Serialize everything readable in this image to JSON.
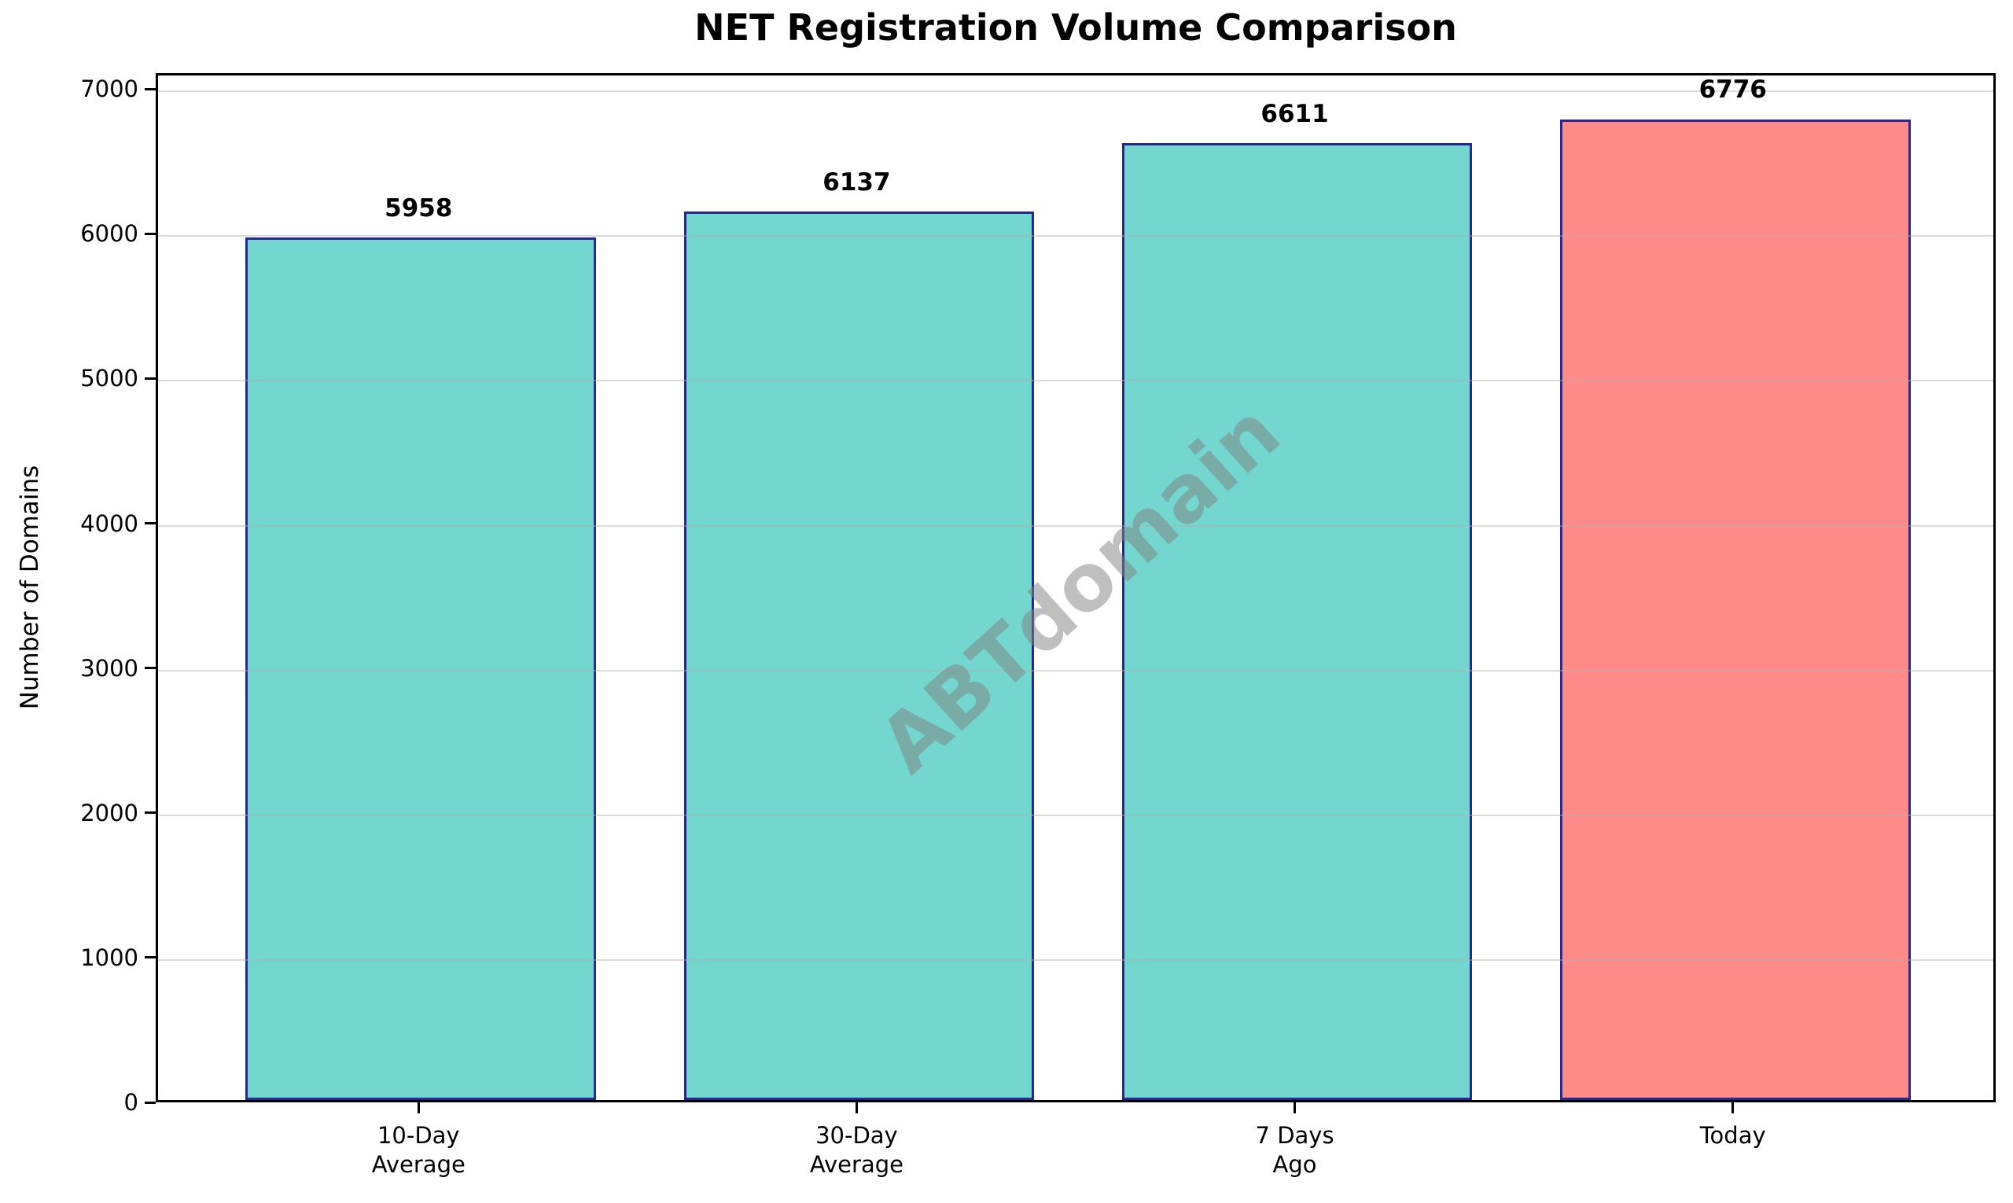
{
  "chart_data": {
    "type": "bar",
    "title": "NET Registration Volume Comparison",
    "ylabel": "Number of Domains",
    "xlabel": "",
    "categories": [
      "10-Day\nAverage",
      "30-Day\nAverage",
      "7 Days\nAgo",
      "Today"
    ],
    "values": [
      5958,
      6137,
      6611,
      6776
    ],
    "value_labels": [
      "5958",
      "6137",
      "6611",
      "6776"
    ],
    "bar_colors": [
      "#73D6CF",
      "#73D6CF",
      "#73D6CF",
      "#FF8A8A"
    ],
    "bar_edge_color": "#28288F",
    "yticks": [
      0,
      1000,
      2000,
      3000,
      4000,
      5000,
      6000,
      7000
    ],
    "ytick_labels": [
      "0",
      "1000",
      "2000",
      "3000",
      "4000",
      "5000",
      "6000",
      "7000"
    ],
    "ylim": [
      0,
      7110
    ],
    "grid": "horizontal-above-bars",
    "legend": null,
    "watermark": "ABTdomain",
    "colors": {
      "grid": "#AFAFAF",
      "spine": "#000000",
      "text": "#000000",
      "watermark_gray": "#808080"
    }
  }
}
